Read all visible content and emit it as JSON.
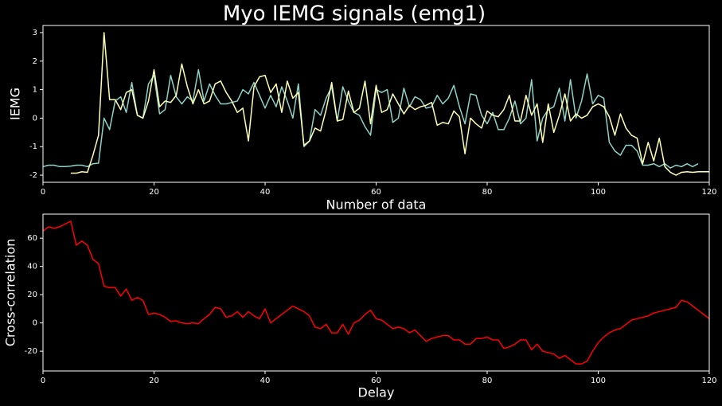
{
  "chart_data": [
    {
      "type": "line",
      "title": "Myo IEMG signals (emg1)",
      "xlabel": "Number of data",
      "ylabel": "IEMG",
      "x": [
        0,
        1,
        2,
        3,
        4,
        5,
        6,
        7,
        8,
        9,
        10,
        11,
        12,
        13,
        14,
        15,
        16,
        17,
        18,
        19,
        20,
        21,
        22,
        23,
        24,
        25,
        26,
        27,
        28,
        29,
        30,
        31,
        32,
        33,
        34,
        35,
        36,
        37,
        38,
        39,
        40,
        41,
        42,
        43,
        44,
        45,
        46,
        47,
        48,
        49,
        50,
        51,
        52,
        53,
        54,
        55,
        56,
        57,
        58,
        59,
        60,
        61,
        62,
        63,
        64,
        65,
        66,
        67,
        68,
        69,
        70,
        71,
        72,
        73,
        74,
        75,
        76,
        77,
        78,
        79,
        80,
        81,
        82,
        83,
        84,
        85,
        86,
        87,
        88,
        89,
        90,
        91,
        92,
        93,
        94,
        95,
        96,
        97,
        98,
        99,
        100,
        101,
        102,
        103,
        104,
        105,
        106,
        107,
        108,
        109,
        110,
        111,
        112,
        113,
        114,
        115,
        116,
        117,
        118,
        119,
        120
      ],
      "series": [
        {
          "color": "#8dd3c7",
          "values": [
            -1.7,
            -1.65,
            -1.65,
            -1.7,
            -1.7,
            -1.68,
            -1.65,
            -1.65,
            -1.7,
            -1.6,
            -1.58,
            0.0,
            -0.4,
            0.6,
            0.75,
            0.2,
            1.25,
            0.1,
            0.0,
            1.2,
            1.5,
            0.15,
            0.3,
            1.5,
            0.75,
            0.5,
            0.75,
            0.6,
            1.7,
            0.6,
            1.2,
            0.8,
            0.5,
            0.5,
            0.55,
            0.6,
            1.0,
            0.85,
            1.25,
            0.8,
            0.35,
            0.8,
            0.4,
            1.1,
            0.6,
            0.0,
            1.2,
            -1.0,
            -0.8,
            0.3,
            0.1,
            0.7,
            1.1,
            -0.1,
            1.1,
            0.6,
            0.2,
            0.1,
            -0.3,
            -0.6,
            1.0,
            0.9,
            1.0,
            -0.15,
            0.0,
            1.05,
            0.4,
            0.75,
            0.65,
            0.35,
            0.4,
            0.8,
            0.5,
            0.7,
            1.15,
            0.4,
            -0.2,
            0.85,
            0.8,
            0.1,
            -0.2,
            0.2,
            -0.4,
            -0.4,
            0.0,
            0.6,
            -0.2,
            0.0,
            1.35,
            -0.8,
            0.0,
            0.3,
            0.4,
            1.05,
            -0.1,
            1.35,
            0.0,
            0.6,
            1.55,
            0.5,
            0.8,
            0.7,
            -0.85,
            -1.15,
            -1.3,
            -0.95,
            -0.95,
            -1.15,
            -1.65,
            -1.65,
            -1.6,
            -1.7,
            -1.6,
            -1.75,
            -1.65,
            -1.7,
            -1.6,
            -1.7,
            -1.6,
            null,
            null
          ]
        },
        {
          "color": "#ffffb3",
          "values": [
            null,
            null,
            null,
            null,
            null,
            -1.93,
            -1.93,
            -1.88,
            -1.9,
            -1.3,
            -0.6,
            3.0,
            0.65,
            0.65,
            0.3,
            0.9,
            1.0,
            0.1,
            0.0,
            0.6,
            1.7,
            0.4,
            0.6,
            0.55,
            0.8,
            1.9,
            1.1,
            0.5,
            1.0,
            0.5,
            0.6,
            1.2,
            1.3,
            0.9,
            0.6,
            0.2,
            0.35,
            -0.8,
            1.1,
            1.45,
            1.5,
            0.9,
            1.2,
            0.2,
            1.3,
            0.7,
            0.9,
            -0.95,
            -0.8,
            -0.35,
            -0.45,
            0.3,
            1.25,
            -0.1,
            -0.05,
            0.95,
            0.2,
            0.35,
            1.3,
            -0.2,
            1.15,
            0.2,
            0.3,
            0.85,
            0.5,
            0.15,
            0.45,
            0.3,
            0.4,
            0.45,
            0.55,
            -0.25,
            -0.15,
            -0.2,
            0.25,
            0.05,
            -1.25,
            0.0,
            -0.2,
            -0.35,
            0.25,
            0.1,
            0.05,
            0.3,
            0.8,
            -0.1,
            -0.1,
            0.8,
            0.1,
            0.5,
            -0.85,
            0.5,
            -0.5,
            0.1,
            0.85,
            -0.1,
            0.15,
            0.0,
            0.1,
            0.4,
            0.5,
            0.4,
            0.05,
            -0.6,
            0.15,
            -0.35,
            -0.6,
            -0.7,
            -1.6,
            -0.85,
            -1.5,
            -0.7,
            -1.7,
            -1.9,
            -2.0,
            -1.9,
            -1.88,
            -1.9,
            -1.88,
            -1.88,
            -1.88
          ]
        }
      ],
      "xlim": [
        0,
        120
      ],
      "xticks": [
        0,
        20,
        40,
        60,
        80,
        100,
        120
      ],
      "ylim": [
        -2.25,
        3.25
      ],
      "yticks": [
        -2,
        -1,
        0,
        1,
        2,
        3
      ]
    },
    {
      "type": "line",
      "xlabel": "Delay",
      "ylabel": "Cross-correlation",
      "x": [
        0,
        1,
        2,
        3,
        4,
        5,
        6,
        7,
        8,
        9,
        10,
        11,
        12,
        13,
        14,
        15,
        16,
        17,
        18,
        19,
        20,
        21,
        22,
        23,
        24,
        25,
        26,
        27,
        28,
        29,
        30,
        31,
        32,
        33,
        34,
        35,
        36,
        37,
        38,
        39,
        40,
        41,
        42,
        43,
        44,
        45,
        46,
        47,
        48,
        49,
        50,
        51,
        52,
        53,
        54,
        55,
        56,
        57,
        58,
        59,
        60,
        61,
        62,
        63,
        64,
        65,
        66,
        67,
        68,
        69,
        70,
        71,
        72,
        73,
        74,
        75,
        76,
        77,
        78,
        79,
        80,
        81,
        82,
        83,
        84,
        85,
        86,
        87,
        88,
        89,
        90,
        91,
        92,
        93,
        94,
        95,
        96,
        97,
        98,
        99,
        100,
        101,
        102,
        103,
        104,
        105,
        106,
        107,
        108,
        109,
        110,
        111,
        112,
        113,
        114,
        115,
        116,
        117,
        118,
        119,
        120
      ],
      "series": [
        {
          "color": "#ff0000",
          "values": [
            65,
            68,
            67,
            68,
            70,
            72,
            55,
            58,
            55,
            45,
            42,
            26,
            25,
            25,
            19,
            24,
            16,
            18,
            16,
            6,
            7,
            6,
            4,
            1,
            1.5,
            0,
            -0.5,
            0,
            -0.5,
            3,
            6,
            11,
            10,
            4,
            5,
            8,
            4,
            8,
            5,
            3,
            10,
            0,
            3,
            6,
            9,
            12,
            10,
            8,
            5,
            -3,
            -4,
            -1,
            -7,
            -7,
            -1,
            -8,
            0,
            2,
            6,
            9,
            3,
            2,
            -1,
            -4,
            -3,
            -4,
            -7,
            -5,
            -9,
            -13,
            -11,
            -10,
            -9,
            -9,
            -12,
            -12,
            -15,
            -15,
            -11,
            -11,
            -10,
            -12,
            -12,
            -18,
            -17,
            -15,
            -12,
            -12,
            -19,
            -15,
            -20,
            -21,
            -22,
            -25,
            -23,
            -26,
            -29,
            -29,
            -27,
            -20,
            -14,
            -10,
            -7,
            -5,
            -4,
            -1,
            2,
            3,
            4,
            5,
            7,
            8,
            9,
            10,
            11,
            16,
            15,
            12,
            9,
            6,
            3
          ]
        }
      ],
      "xlim": [
        0,
        120
      ],
      "xticks": [
        0,
        20,
        40,
        60,
        80,
        100,
        120
      ],
      "ylim": [
        -34,
        77
      ],
      "yticks": [
        -20,
        0,
        20,
        40,
        60
      ]
    }
  ]
}
